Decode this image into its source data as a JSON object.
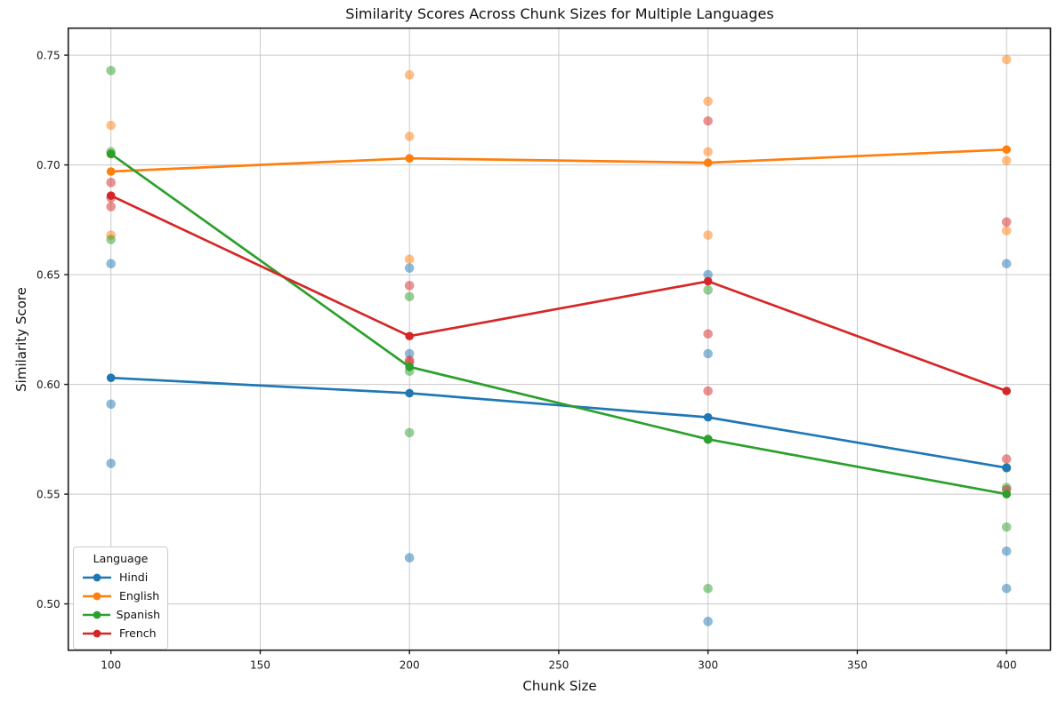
{
  "chart_data": {
    "type": "line",
    "title": "Similarity Scores Across Chunk Sizes for Multiple Languages",
    "xlabel": "Chunk Size",
    "ylabel": "Similarity Score",
    "x": [
      100,
      200,
      300,
      400
    ],
    "xticks": [
      100,
      150,
      200,
      250,
      300,
      350,
      400
    ],
    "xtick_labels": [
      "100",
      "150",
      "200",
      "250",
      "300",
      "350",
      "400"
    ],
    "yticks": [
      0.5,
      0.55,
      0.6,
      0.65,
      0.7,
      0.75
    ],
    "ytick_labels": [
      "0.50",
      "0.55",
      "0.60",
      "0.65",
      "0.70",
      "0.75"
    ],
    "xlim": [
      85.7,
      414.7
    ],
    "ylim": [
      0.4789,
      0.7623
    ],
    "grid": true,
    "legend": {
      "title": "Language",
      "position": "lower left"
    },
    "series": [
      {
        "name": "Hindi",
        "color": "#1f77b4",
        "mean": [
          0.603,
          0.596,
          0.585,
          0.562
        ],
        "runs": [
          [
            0.655,
            0.591,
            0.564
          ],
          [
            0.653,
            0.614,
            0.521
          ],
          [
            0.65,
            0.614,
            0.492
          ],
          [
            0.655,
            0.524,
            0.507
          ]
        ]
      },
      {
        "name": "English",
        "color": "#ff7f0e",
        "mean": [
          0.697,
          0.703,
          0.701,
          0.707
        ],
        "runs": [
          [
            0.718,
            0.705,
            0.668
          ],
          [
            0.741,
            0.713,
            0.657
          ],
          [
            0.729,
            0.706,
            0.668
          ],
          [
            0.748,
            0.702,
            0.67
          ]
        ]
      },
      {
        "name": "Spanish",
        "color": "#2ca02c",
        "mean": [
          0.705,
          0.608,
          0.575,
          0.55
        ],
        "runs": [
          [
            0.743,
            0.706,
            0.666
          ],
          [
            0.64,
            0.606,
            0.578
          ],
          [
            0.643,
            0.575,
            0.507
          ],
          [
            0.562,
            0.553,
            0.535
          ]
        ]
      },
      {
        "name": "French",
        "color": "#d62728",
        "mean": [
          0.686,
          0.622,
          0.647,
          0.597
        ],
        "runs": [
          [
            0.692,
            0.685,
            0.681
          ],
          [
            0.645,
            0.611,
            0.61
          ],
          [
            0.72,
            0.623,
            0.597
          ],
          [
            0.674,
            0.566,
            0.552
          ]
        ]
      }
    ],
    "style": {
      "grid_color": "#c9c9c9",
      "spine_color": "#1a1a1a",
      "scatter_alpha": 0.5
    }
  }
}
